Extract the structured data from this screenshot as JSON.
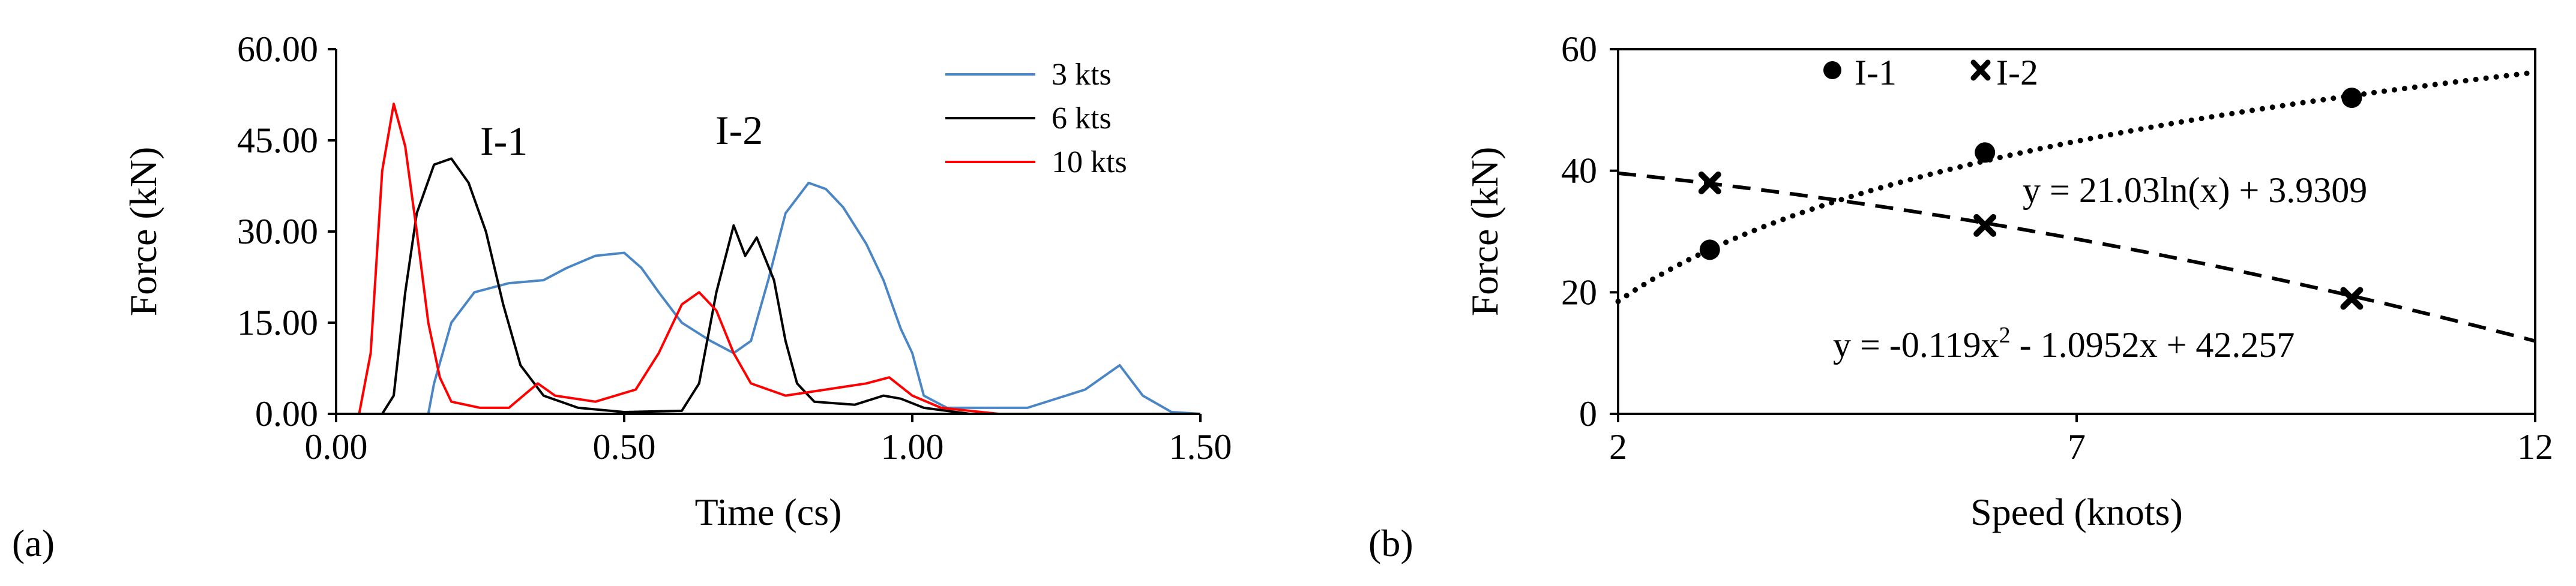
{
  "chart_data": [
    {
      "panel_label": "(a)",
      "type": "line",
      "title": "",
      "xlabel": "Time (cs)",
      "ylabel": "Force (kN)",
      "xlim": [
        0,
        1.5
      ],
      "ylim": [
        0,
        60
      ],
      "x_ticks": [
        "0.00",
        "0.50",
        "1.00",
        "1.50"
      ],
      "y_ticks": [
        "0.00",
        "15.00",
        "30.00",
        "45.00",
        "60.00"
      ],
      "grid": false,
      "legend_position": "top-right",
      "annotations": [
        "I-1",
        "I-2"
      ],
      "series": [
        {
          "name": "3 kts",
          "color": "#4a86c6",
          "points": [
            [
              0.0,
              0
            ],
            [
              0.16,
              0
            ],
            [
              0.17,
              5
            ],
            [
              0.2,
              15
            ],
            [
              0.24,
              20
            ],
            [
              0.3,
              21.5
            ],
            [
              0.36,
              22
            ],
            [
              0.4,
              24
            ],
            [
              0.45,
              26
            ],
            [
              0.5,
              26.5
            ],
            [
              0.53,
              24
            ],
            [
              0.56,
              20
            ],
            [
              0.6,
              15
            ],
            [
              0.65,
              12
            ],
            [
              0.69,
              10
            ],
            [
              0.72,
              12
            ],
            [
              0.75,
              22
            ],
            [
              0.78,
              33
            ],
            [
              0.82,
              38
            ],
            [
              0.85,
              37
            ],
            [
              0.88,
              34
            ],
            [
              0.92,
              28
            ],
            [
              0.95,
              22
            ],
            [
              0.98,
              14
            ],
            [
              1.0,
              10
            ],
            [
              1.02,
              3
            ],
            [
              1.06,
              1
            ],
            [
              1.2,
              1
            ],
            [
              1.3,
              4
            ],
            [
              1.36,
              8
            ],
            [
              1.4,
              3
            ],
            [
              1.45,
              0.3
            ],
            [
              1.5,
              0
            ]
          ]
        },
        {
          "name": "6 kts",
          "color": "#000000",
          "points": [
            [
              0.0,
              0
            ],
            [
              0.08,
              0
            ],
            [
              0.1,
              3
            ],
            [
              0.12,
              20
            ],
            [
              0.14,
              33
            ],
            [
              0.17,
              41
            ],
            [
              0.2,
              42
            ],
            [
              0.23,
              38
            ],
            [
              0.26,
              30
            ],
            [
              0.29,
              18
            ],
            [
              0.32,
              8
            ],
            [
              0.36,
              3
            ],
            [
              0.42,
              1
            ],
            [
              0.5,
              0.3
            ],
            [
              0.6,
              0.5
            ],
            [
              0.63,
              5
            ],
            [
              0.66,
              20
            ],
            [
              0.69,
              31
            ],
            [
              0.71,
              26
            ],
            [
              0.73,
              29
            ],
            [
              0.76,
              22
            ],
            [
              0.78,
              12
            ],
            [
              0.8,
              5
            ],
            [
              0.83,
              2
            ],
            [
              0.9,
              1.5
            ],
            [
              0.95,
              3
            ],
            [
              0.98,
              2.5
            ],
            [
              1.02,
              1
            ],
            [
              1.1,
              0
            ],
            [
              1.5,
              0
            ]
          ]
        },
        {
          "name": "10 kts",
          "color": "#ff0000",
          "points": [
            [
              0.0,
              0
            ],
            [
              0.04,
              0
            ],
            [
              0.06,
              10
            ],
            [
              0.08,
              40
            ],
            [
              0.1,
              51
            ],
            [
              0.12,
              44
            ],
            [
              0.14,
              30
            ],
            [
              0.16,
              15
            ],
            [
              0.18,
              6
            ],
            [
              0.2,
              2
            ],
            [
              0.25,
              1
            ],
            [
              0.3,
              1
            ],
            [
              0.35,
              5
            ],
            [
              0.38,
              3
            ],
            [
              0.45,
              2
            ],
            [
              0.52,
              4
            ],
            [
              0.56,
              10
            ],
            [
              0.6,
              18
            ],
            [
              0.63,
              20
            ],
            [
              0.66,
              17
            ],
            [
              0.69,
              10
            ],
            [
              0.72,
              5
            ],
            [
              0.78,
              3
            ],
            [
              0.85,
              4
            ],
            [
              0.92,
              5
            ],
            [
              0.96,
              6
            ],
            [
              1.0,
              3
            ],
            [
              1.05,
              1
            ],
            [
              1.15,
              0
            ],
            [
              1.5,
              0
            ]
          ]
        }
      ]
    },
    {
      "panel_label": "(b)",
      "type": "scatter",
      "title": "",
      "xlabel": "Speed (knots)",
      "ylabel": "Force (kN)",
      "xlim": [
        2,
        12
      ],
      "ylim": [
        0,
        60
      ],
      "x_ticks": [
        "2",
        "7",
        "12"
      ],
      "y_ticks": [
        "0",
        "20",
        "40",
        "60"
      ],
      "grid": false,
      "legend_position": "top-center",
      "series": [
        {
          "name": "I-1",
          "marker": "circle",
          "points": [
            [
              3,
              27
            ],
            [
              6,
              43
            ],
            [
              10,
              52
            ]
          ],
          "trendline": {
            "type": "logarithmic",
            "style": "dotted",
            "a": 21.03,
            "b": 3.9309,
            "equation": "y = 21.03ln(x) + 3.9309"
          }
        },
        {
          "name": "I-2",
          "marker": "x",
          "points": [
            [
              3,
              38
            ],
            [
              6,
              31
            ],
            [
              10,
              19
            ]
          ],
          "trendline": {
            "type": "polynomial",
            "style": "dashed",
            "c2": -0.119,
            "c1": -1.0952,
            "c0": 42.257,
            "equation_prefix": "y = -0.119x",
            "equation_exp": "2",
            "equation_suffix": " - 1.0952x + 42.257"
          }
        }
      ]
    }
  ]
}
